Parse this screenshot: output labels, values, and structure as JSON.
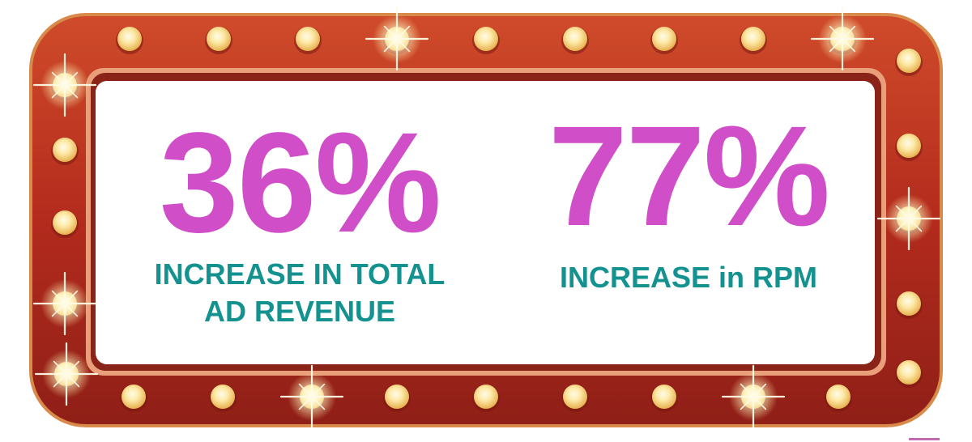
{
  "stats": [
    {
      "value": "36%",
      "caption_line1": "INCREASE IN TOTAL",
      "caption_line2": "AD REVENUE"
    },
    {
      "value": "77%",
      "caption_line1": "INCREASE in RPM"
    }
  ],
  "colors": {
    "value": "#d04fc8",
    "caption": "#14928f",
    "frame": "#b8321e",
    "bulb": "#f5d68a"
  }
}
